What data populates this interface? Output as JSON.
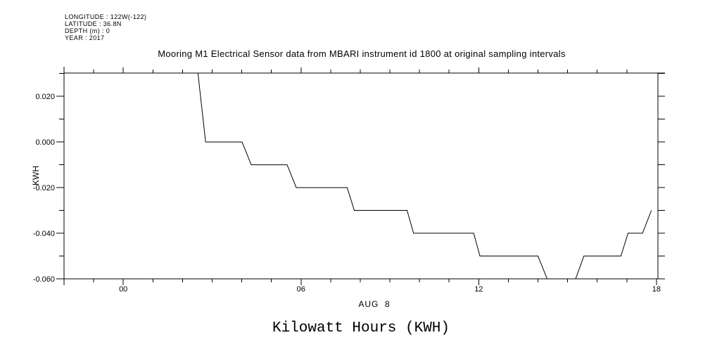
{
  "meta": {
    "lines": [
      "LONGITUDE : 122W(-122)",
      "LATITUDE : 36.8N",
      "DEPTH (m) : 0",
      "YEAR : 2017"
    ]
  },
  "title": "Mooring M1 Electrical Sensor data from MBARI instrument id 1800 at original sampling intervals",
  "bottom_title": "Kilowatt Hours (KWH)",
  "colors": {
    "foreground": "#000000",
    "background": "#ffffff"
  },
  "x_axis": {
    "date_label": "AUG  8",
    "major_ticks": [
      {
        "hour": 0,
        "label": "00"
      },
      {
        "hour": 6,
        "label": "06"
      },
      {
        "hour": 12,
        "label": "12"
      },
      {
        "hour": 18,
        "label": "18"
      }
    ],
    "minor_tick_hours": [
      -1,
      1,
      2,
      3,
      4,
      5,
      7,
      8,
      9,
      10,
      11,
      13,
      14,
      15,
      16,
      17
    ]
  },
  "y_axis": {
    "label": "KWH",
    "major_ticks": [
      {
        "value": 0.02,
        "label": "0.020"
      },
      {
        "value": 0.0,
        "label": "0.000"
      },
      {
        "value": -0.02,
        "label": "-0.020"
      },
      {
        "value": -0.04,
        "label": "-0.040"
      },
      {
        "value": -0.06,
        "label": "-0.060"
      }
    ],
    "minor_tick_values": [
      0.03,
      0.01,
      -0.01,
      -0.03,
      -0.05
    ]
  },
  "chart_data": {
    "type": "line",
    "title": "Mooring M1 Electrical Sensor data from MBARI instrument id 1800 at original sampling intervals",
    "xlabel": "AUG 8",
    "ylabel": "KWH",
    "x_unit": "hour of day on AUG 8 (2017)",
    "xlim": [
      -2.0,
      18.05
    ],
    "ylim": [
      -0.06,
      0.0302
    ],
    "grid": false,
    "legend": false,
    "line_color": "#000000",
    "series": [
      {
        "name": "KWH",
        "points": [
          [
            2.52,
            0.0302
          ],
          [
            2.78,
            0.0
          ],
          [
            4.01,
            0.0
          ],
          [
            4.32,
            -0.01
          ],
          [
            5.53,
            -0.01
          ],
          [
            5.84,
            -0.02
          ],
          [
            7.56,
            -0.02
          ],
          [
            7.8,
            -0.03
          ],
          [
            9.58,
            -0.03
          ],
          [
            9.8,
            -0.04
          ],
          [
            11.83,
            -0.04
          ],
          [
            12.04,
            -0.05
          ],
          [
            14.0,
            -0.05
          ],
          [
            14.31,
            -0.06
          ],
          [
            15.27,
            -0.06
          ],
          [
            15.55,
            -0.05
          ],
          [
            16.8,
            -0.05
          ],
          [
            17.04,
            -0.04
          ],
          [
            17.53,
            -0.04
          ],
          [
            17.83,
            -0.03
          ]
        ]
      }
    ]
  }
}
